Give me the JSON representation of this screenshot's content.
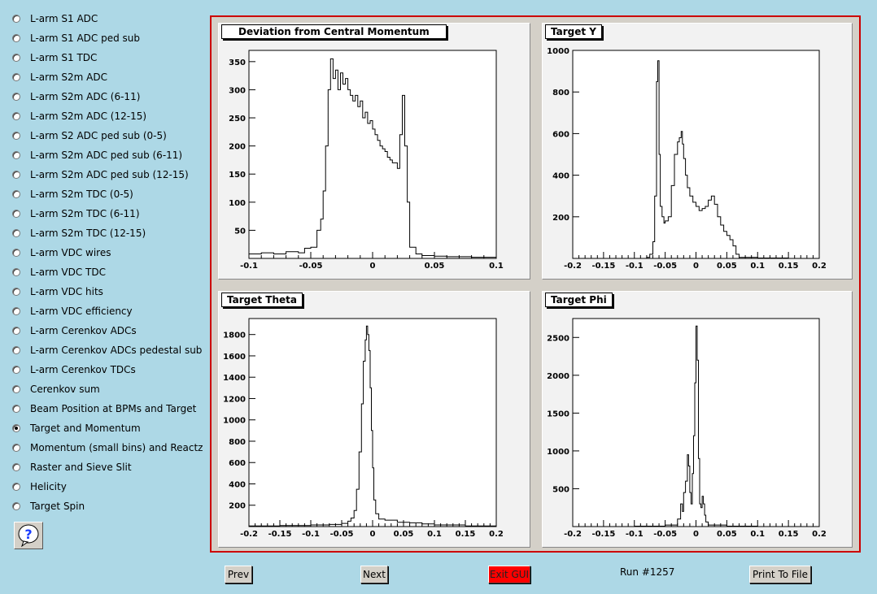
{
  "sidebar": {
    "items": [
      {
        "label": "L-arm S1 ADC",
        "checked": false
      },
      {
        "label": "L-arm S1 ADC ped sub",
        "checked": false
      },
      {
        "label": "L-arm S1 TDC",
        "checked": false
      },
      {
        "label": "L-arm S2m ADC",
        "checked": false
      },
      {
        "label": "L-arm S2m ADC (6-11)",
        "checked": false
      },
      {
        "label": "L-arm S2m ADC (12-15)",
        "checked": false
      },
      {
        "label": "L-arm S2 ADC ped sub (0-5)",
        "checked": false
      },
      {
        "label": "L-arm S2m ADC ped sub (6-11)",
        "checked": false
      },
      {
        "label": "L-arm S2m ADC ped sub (12-15)",
        "checked": false
      },
      {
        "label": "L-arm S2m TDC (0-5)",
        "checked": false
      },
      {
        "label": "L-arm S2m TDC (6-11)",
        "checked": false
      },
      {
        "label": "L-arm S2m TDC (12-15)",
        "checked": false
      },
      {
        "label": "L-arm VDC wires",
        "checked": false
      },
      {
        "label": "L-arm VDC TDC",
        "checked": false
      },
      {
        "label": "L-arm VDC hits",
        "checked": false
      },
      {
        "label": "L-arm VDC efficiency",
        "checked": false
      },
      {
        "label": "L-arm Cerenkov ADCs",
        "checked": false
      },
      {
        "label": "L-arm Cerenkov ADCs pedestal sub",
        "checked": false
      },
      {
        "label": "L-arm Cerenkov TDCs",
        "checked": false
      },
      {
        "label": "Cerenkov sum",
        "checked": false
      },
      {
        "label": "Beam Position at BPMs and Target",
        "checked": false
      },
      {
        "label": "Target and Momentum",
        "checked": true
      },
      {
        "label": "Momentum (small bins) and Reactz",
        "checked": false
      },
      {
        "label": "Raster and Sieve Slit",
        "checked": false
      },
      {
        "label": "Helicity",
        "checked": false
      },
      {
        "label": "Target Spin",
        "checked": false
      }
    ],
    "help_icon": "question-mark-icon"
  },
  "footer": {
    "prev_label": "Prev",
    "next_label": "Next",
    "exit_label": "Exit GUI",
    "run_label": "Run #1257",
    "print_label": "Print To File"
  },
  "colors": {
    "background": "#add8e6",
    "frame_border": "#cc0000",
    "exit_button": "#ff0000",
    "pad": "#f2f2f2"
  },
  "chart_data": [
    {
      "type": "histogram",
      "title": "Deviation from Central Momentum",
      "xlim": [
        -0.1,
        0.1
      ],
      "ylim": [
        0,
        370
      ],
      "xticks": [
        "-0.1",
        "-0.05",
        "0",
        "0.05",
        "0.1"
      ],
      "xtick_values": [
        -0.1,
        -0.05,
        0,
        0.05,
        0.1
      ],
      "yticks": [
        "50",
        "100",
        "150",
        "200",
        "250",
        "300",
        "350"
      ],
      "ytick_values": [
        50,
        100,
        150,
        200,
        250,
        300,
        350
      ],
      "x": [
        -0.1,
        -0.09,
        -0.08,
        -0.07,
        -0.06,
        -0.055,
        -0.05,
        -0.045,
        -0.042,
        -0.04,
        -0.038,
        -0.036,
        -0.034,
        -0.032,
        -0.03,
        -0.028,
        -0.026,
        -0.024,
        -0.022,
        -0.02,
        -0.018,
        -0.016,
        -0.014,
        -0.012,
        -0.01,
        -0.008,
        -0.006,
        -0.004,
        -0.002,
        0,
        0.002,
        0.004,
        0.006,
        0.008,
        0.01,
        0.012,
        0.014,
        0.016,
        0.018,
        0.02,
        0.022,
        0.024,
        0.026,
        0.028,
        0.03,
        0.035,
        0.04,
        0.05,
        0.06,
        0.07,
        0.08,
        0.1
      ],
      "y": [
        8,
        10,
        8,
        12,
        10,
        18,
        20,
        50,
        70,
        120,
        200,
        300,
        355,
        320,
        335,
        300,
        330,
        310,
        320,
        300,
        290,
        280,
        290,
        270,
        280,
        250,
        260,
        240,
        245,
        230,
        220,
        210,
        200,
        195,
        190,
        180,
        175,
        170,
        170,
        160,
        220,
        290,
        200,
        100,
        20,
        8,
        5,
        4,
        3,
        3,
        2,
        2
      ]
    },
    {
      "type": "histogram",
      "title": "Target Y",
      "xlim": [
        -0.2,
        0.2
      ],
      "ylim": [
        0,
        1000
      ],
      "xticks": [
        "-0.2",
        "-0.15",
        "-0.1",
        "-0.05",
        "0",
        "0.05",
        "0.1",
        "0.15",
        "0.2"
      ],
      "xtick_values": [
        -0.2,
        -0.15,
        -0.1,
        -0.05,
        0,
        0.05,
        0.1,
        0.15,
        0.2
      ],
      "yticks": [
        "200",
        "400",
        "600",
        "800",
        "1000"
      ],
      "ytick_values": [
        200,
        400,
        600,
        800,
        1000
      ],
      "x": [
        -0.2,
        -0.15,
        -0.1,
        -0.08,
        -0.075,
        -0.07,
        -0.067,
        -0.064,
        -0.062,
        -0.06,
        -0.058,
        -0.055,
        -0.052,
        -0.05,
        -0.045,
        -0.04,
        -0.035,
        -0.03,
        -0.027,
        -0.024,
        -0.022,
        -0.02,
        -0.017,
        -0.014,
        -0.01,
        -0.005,
        0,
        0.005,
        0.01,
        0.015,
        0.02,
        0.025,
        0.03,
        0.035,
        0.04,
        0.045,
        0.05,
        0.055,
        0.06,
        0.065,
        0.07,
        0.1,
        0.15,
        0.2
      ],
      "y": [
        0,
        0,
        0,
        5,
        20,
        80,
        300,
        850,
        950,
        500,
        250,
        200,
        170,
        180,
        200,
        350,
        500,
        560,
        580,
        610,
        550,
        480,
        400,
        340,
        300,
        270,
        250,
        230,
        240,
        250,
        280,
        300,
        260,
        200,
        160,
        130,
        110,
        90,
        60,
        20,
        5,
        2,
        0,
        0
      ]
    },
    {
      "type": "histogram",
      "title": "Target Theta",
      "xlim": [
        -0.2,
        0.2
      ],
      "ylim": [
        0,
        1950
      ],
      "xticks": [
        "-0.2",
        "-0.15",
        "-0.1",
        "-0.05",
        "0",
        "0.05",
        "0.1",
        "0.15",
        "0.2"
      ],
      "xtick_values": [
        -0.2,
        -0.15,
        -0.1,
        -0.05,
        0,
        0.05,
        0.1,
        0.15,
        0.2
      ],
      "yticks": [
        "200",
        "400",
        "600",
        "800",
        "1000",
        "1200",
        "1400",
        "1600",
        "1800"
      ],
      "ytick_values": [
        200,
        400,
        600,
        800,
        1000,
        1200,
        1400,
        1600,
        1800
      ],
      "x": [
        -0.2,
        -0.15,
        -0.1,
        -0.07,
        -0.05,
        -0.04,
        -0.035,
        -0.03,
        -0.026,
        -0.022,
        -0.018,
        -0.015,
        -0.012,
        -0.01,
        -0.008,
        -0.006,
        -0.004,
        -0.002,
        0,
        0.002,
        0.005,
        0.01,
        0.02,
        0.04,
        0.06,
        0.08,
        0.1,
        0.15,
        0.2
      ],
      "y": [
        5,
        10,
        15,
        20,
        30,
        50,
        80,
        150,
        350,
        700,
        1150,
        1550,
        1750,
        1880,
        1800,
        1650,
        1300,
        900,
        550,
        250,
        120,
        70,
        60,
        40,
        35,
        25,
        15,
        5,
        3
      ]
    },
    {
      "type": "histogram",
      "title": "Target Phi",
      "xlim": [
        -0.2,
        0.2
      ],
      "ylim": [
        0,
        2750
      ],
      "xticks": [
        "-0.2",
        "-0.15",
        "-0.1",
        "-0.05",
        "0",
        "0.05",
        "0.1",
        "0.15",
        "0.2"
      ],
      "xtick_values": [
        -0.2,
        -0.15,
        -0.1,
        -0.05,
        0,
        0.05,
        0.1,
        0.15,
        0.2
      ],
      "yticks": [
        "500",
        "1000",
        "1500",
        "2000",
        "2500"
      ],
      "ytick_values": [
        500,
        1000,
        1500,
        2000,
        2500
      ],
      "x": [
        -0.2,
        -0.1,
        -0.05,
        -0.03,
        -0.025,
        -0.022,
        -0.02,
        -0.017,
        -0.014,
        -0.012,
        -0.01,
        -0.008,
        -0.006,
        -0.004,
        -0.002,
        0,
        0.002,
        0.004,
        0.006,
        0.008,
        0.01,
        0.012,
        0.014,
        0.016,
        0.02,
        0.05,
        0.1,
        0.2
      ],
      "y": [
        0,
        5,
        20,
        100,
        300,
        200,
        450,
        600,
        950,
        800,
        450,
        300,
        700,
        1200,
        1900,
        2650,
        2200,
        900,
        300,
        250,
        400,
        300,
        150,
        60,
        20,
        5,
        0,
        0
      ]
    }
  ]
}
